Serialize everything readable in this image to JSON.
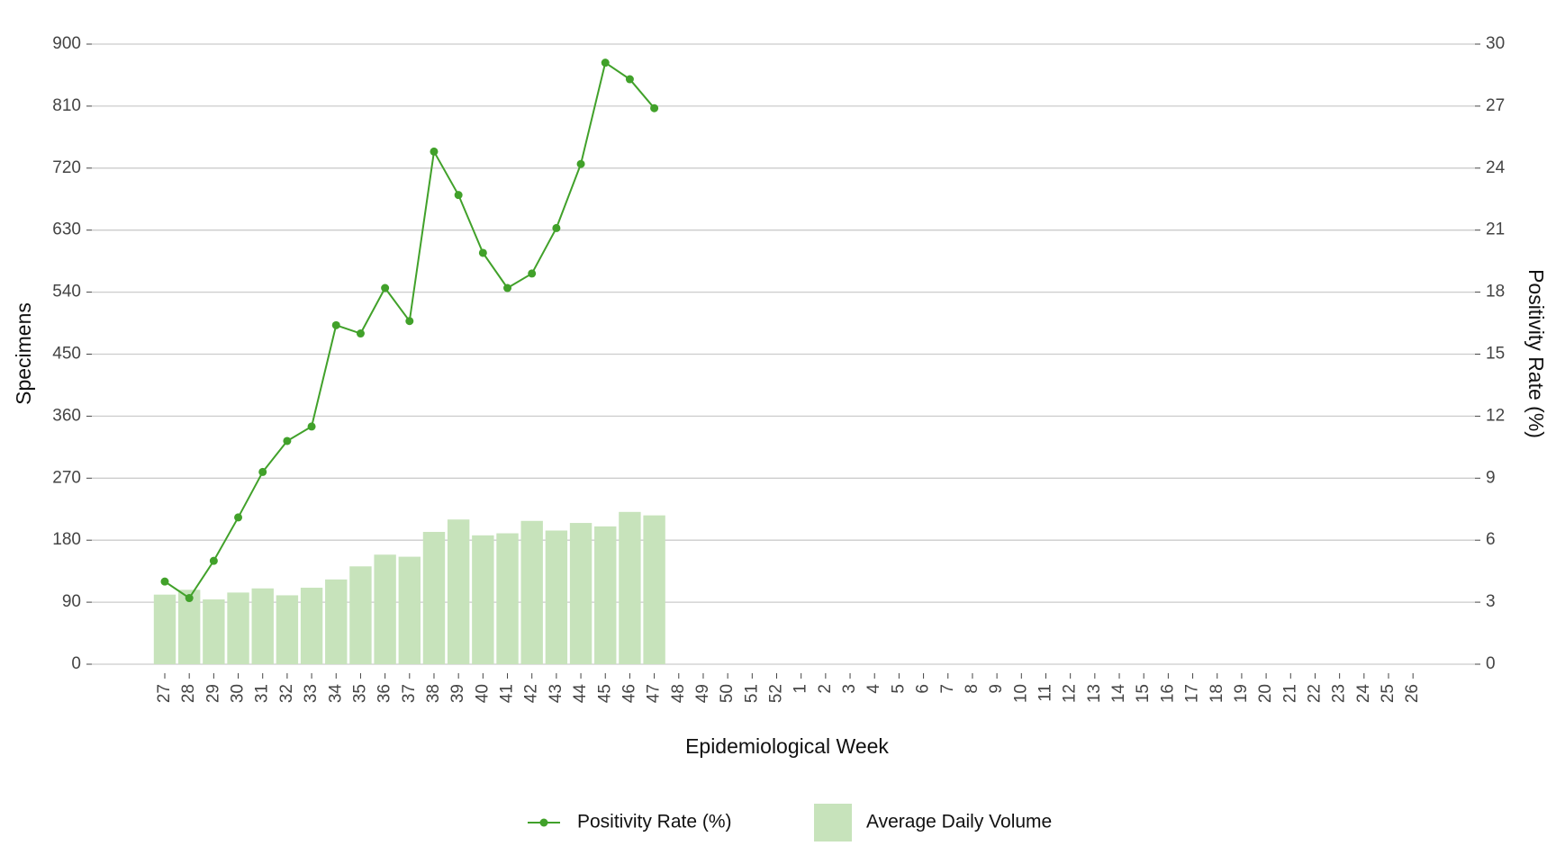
{
  "chart_data": {
    "type": "bar_line",
    "x_label": "Epidemiological Week",
    "y_label": "Specimens",
    "y2_label": "Positivity Rate (%)",
    "categories": [
      "27",
      "28",
      "29",
      "30",
      "31",
      "32",
      "33",
      "34",
      "35",
      "36",
      "37",
      "38",
      "39",
      "40",
      "41",
      "42",
      "43",
      "44",
      "45",
      "46",
      "47",
      "48",
      "49",
      "50",
      "51",
      "52",
      "1",
      "2",
      "3",
      "4",
      "5",
      "6",
      "7",
      "8",
      "9",
      "10",
      "11",
      "12",
      "13",
      "14",
      "15",
      "16",
      "17",
      "18",
      "19",
      "20",
      "21",
      "22",
      "23",
      "24",
      "25",
      "26"
    ],
    "series": [
      {
        "name": "Average Daily Volume",
        "type": "bar",
        "color": "#c7e3bb",
        "values": [
          101,
          108,
          94,
          104,
          110,
          100,
          111,
          123,
          142,
          159,
          156,
          192,
          210,
          187,
          190,
          208,
          194,
          205,
          200,
          221,
          216,
          null,
          null,
          null,
          null,
          null,
          null,
          null,
          null,
          null,
          null,
          null,
          null,
          null,
          null,
          null,
          null,
          null,
          null,
          null,
          null,
          null,
          null,
          null,
          null,
          null,
          null,
          null,
          null,
          null,
          null,
          null
        ]
      },
      {
        "name": "Positivity Rate (%)",
        "type": "line",
        "axis": "y2",
        "color": "#41a12a",
        "values": [
          4.0,
          3.2,
          5.0,
          7.1,
          9.3,
          10.8,
          11.5,
          16.4,
          16.0,
          18.2,
          16.6,
          24.8,
          22.7,
          19.9,
          18.2,
          18.9,
          21.1,
          24.2,
          29.1,
          28.3,
          26.9,
          null,
          null,
          null,
          null,
          null,
          null,
          null,
          null,
          null,
          null,
          null,
          null,
          null,
          null,
          null,
          null,
          null,
          null,
          null,
          null,
          null,
          null,
          null,
          null,
          null,
          null,
          null,
          null,
          null,
          null,
          null
        ]
      }
    ],
    "ylim": [
      0,
      900
    ],
    "yticks": [
      0,
      90,
      180,
      270,
      360,
      450,
      540,
      630,
      720,
      810,
      900
    ],
    "y2lim": [
      0,
      30
    ],
    "y2ticks": [
      0,
      3,
      6,
      9,
      12,
      15,
      18,
      21,
      24,
      27,
      30
    ],
    "grid": true,
    "legend": "bottom"
  }
}
